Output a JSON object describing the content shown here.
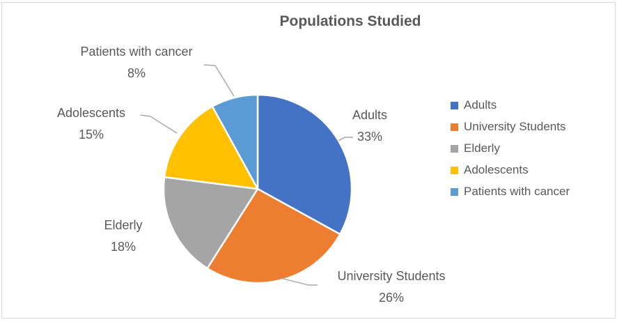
{
  "chart_data": {
    "type": "pie",
    "title": "Populations Studied",
    "start_angle_deg": 0,
    "direction": "clockwise",
    "label_style": "category-name-and-percentage-outside-end",
    "slices": [
      {
        "label": "Adults",
        "value": 33,
        "pct_label": "33%",
        "color": "#4472C4"
      },
      {
        "label": "University Students",
        "value": 26,
        "pct_label": "26%",
        "color": "#ED7D31"
      },
      {
        "label": "Elderly",
        "value": 18,
        "pct_label": "18%",
        "color": "#A5A5A5"
      },
      {
        "label": "Adolescents",
        "value": 15,
        "pct_label": "15%",
        "color": "#FFC000"
      },
      {
        "label": "Patients with cancer",
        "value": 8,
        "pct_label": "8%",
        "color": "#5B9BD5"
      }
    ],
    "legend": {
      "position": "right",
      "entries": [
        "Adults",
        "University Students",
        "Elderly",
        "Adolescents",
        "Patients with cancer"
      ]
    },
    "colors": {
      "title_text": "#595959",
      "label_text": "#595959",
      "legend_text": "#595959",
      "leader_line": "#A6A6A6",
      "slice_border": "#FFFFFF",
      "chart_border": "#D9D9D9",
      "background": "#FFFFFF"
    }
  }
}
